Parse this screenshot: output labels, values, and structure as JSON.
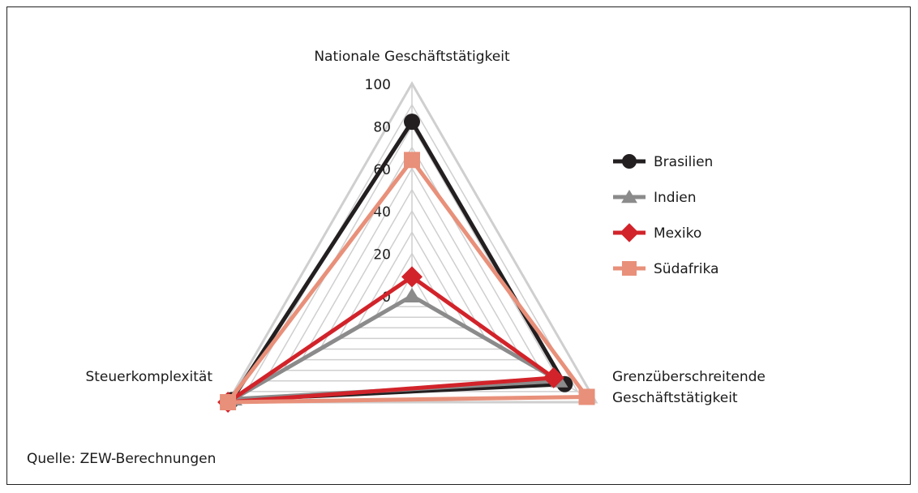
{
  "chart_data": {
    "type": "radar",
    "axes": [
      {
        "label": [
          "Nationale Geschäftstätigkeit"
        ]
      },
      {
        "label": [
          "Grenzüberschreitende",
          "Geschäftstätigkeit"
        ]
      },
      {
        "label": [
          "Steuerkomplexität"
        ]
      }
    ],
    "r_ticks": [
      "0",
      "20",
      "40",
      "60",
      "80",
      "100"
    ],
    "r_range": [
      0,
      100
    ],
    "grid_step": 10,
    "series": [
      {
        "name": "Brasilien",
        "values": [
          82,
          83,
          98
        ],
        "color": "#231f20",
        "marker": "circle"
      },
      {
        "name": "Indien",
        "values": [
          0,
          80,
          97
        ],
        "color": "#8c8b8b",
        "marker": "triangle"
      },
      {
        "name": "Mexiko",
        "values": [
          9,
          77,
          100
        ],
        "color": "#d2232a",
        "marker": "diamond"
      },
      {
        "name": "Südafrika",
        "values": [
          64,
          95,
          100
        ],
        "color": "#e8907a",
        "marker": "square"
      }
    ],
    "legend_position": "right"
  },
  "source": "Quelle: ZEW-Berechnungen"
}
